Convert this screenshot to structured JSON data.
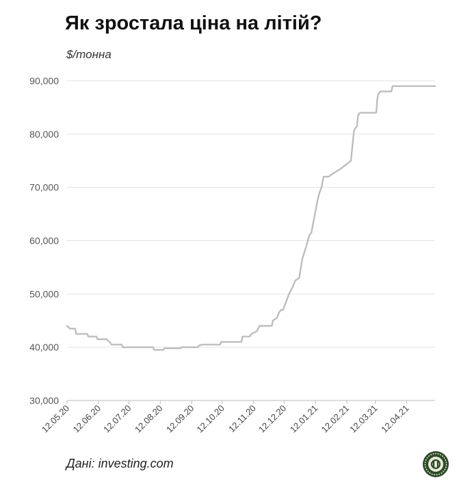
{
  "title": "Як зростала ціна на літій?",
  "unit": "$/тонна",
  "source": "Дані: investing.com",
  "colors": {
    "line": "#bdbdbd",
    "grid": "#e2e2e2",
    "logo": "#2f4a2a"
  },
  "logo_icon": "publisher-logo-icon",
  "chart_data": {
    "type": "line",
    "title": "Як зростала ціна на літій?",
    "ylabel": "$/тонна",
    "xlabel": "",
    "ylim": [
      30000,
      90000
    ],
    "yticks": [
      30000,
      40000,
      50000,
      60000,
      70000,
      80000,
      90000
    ],
    "ytick_labels": [
      "30,000",
      "40,000",
      "50,000",
      "60,000",
      "70,000",
      "80,000",
      "90,000"
    ],
    "xlim": [
      "2020-05-12",
      "2021-05-10"
    ],
    "xticks": [
      "2020-05-12",
      "2020-06-12",
      "2020-07-12",
      "2020-08-12",
      "2020-09-12",
      "2020-10-12",
      "2020-11-12",
      "2020-12-12",
      "2021-01-12",
      "2021-02-12",
      "2021-03-12",
      "2021-04-12"
    ],
    "xtick_labels": [
      "12.05.20",
      "12.06.20",
      "12.07.20",
      "12.08.20",
      "12.09.20",
      "12.10.20",
      "12.11.20",
      "12.12.20",
      "12.01.21",
      "12.02.21",
      "12.03.21",
      "12.04.21"
    ],
    "grid": true,
    "x": [
      "2020-05-12",
      "2020-05-15",
      "2020-05-20",
      "2020-05-21",
      "2020-06-01",
      "2020-06-02",
      "2020-06-10",
      "2020-06-11",
      "2020-06-20",
      "2020-06-23",
      "2020-06-25",
      "2020-07-05",
      "2020-07-06",
      "2020-08-05",
      "2020-08-06",
      "2020-08-15",
      "2020-08-16",
      "2020-09-01",
      "2020-09-02",
      "2020-09-18",
      "2020-09-19",
      "2020-09-22",
      "2020-10-10",
      "2020-10-11",
      "2020-10-31",
      "2020-11-01",
      "2020-11-08",
      "2020-11-10",
      "2020-11-15",
      "2020-11-18",
      "2020-11-30",
      "2020-12-01",
      "2020-12-05",
      "2020-12-07",
      "2020-12-09",
      "2020-12-11",
      "2020-12-17",
      "2020-12-21",
      "2020-12-23",
      "2020-12-27",
      "2020-12-30",
      "2021-01-03",
      "2021-01-06",
      "2021-01-08",
      "2021-01-10",
      "2021-01-14",
      "2021-01-16",
      "2021-01-18",
      "2021-01-20",
      "2021-01-23",
      "2021-01-25",
      "2021-01-27",
      "2021-02-06",
      "2021-02-16",
      "2021-02-19",
      "2021-02-20",
      "2021-02-22",
      "2021-02-23",
      "2021-02-25",
      "2021-02-27",
      "2021-03-01",
      "2021-03-02",
      "2021-03-13",
      "2021-03-14",
      "2021-03-15",
      "2021-03-17",
      "2021-03-19",
      "2021-03-28",
      "2021-03-29",
      "2021-05-10"
    ],
    "values": [
      44000,
      43500,
      43500,
      42500,
      42500,
      42000,
      42000,
      41500,
      41500,
      41000,
      40500,
      40500,
      40000,
      40000,
      39500,
      39500,
      39800,
      39800,
      40000,
      40000,
      40300,
      40500,
      40500,
      41000,
      41000,
      42000,
      42000,
      42500,
      43000,
      44000,
      44000,
      45000,
      45500,
      46500,
      47000,
      47000,
      50000,
      51500,
      52500,
      53000,
      56500,
      59000,
      61000,
      61500,
      63500,
      67500,
      69000,
      70000,
      72000,
      72000,
      72000,
      72300,
      73500,
      75000,
      80500,
      81000,
      81500,
      83500,
      84000,
      84000,
      84000,
      84000,
      84000,
      86500,
      87500,
      88000,
      88000,
      88000,
      89000,
      89000
    ]
  }
}
